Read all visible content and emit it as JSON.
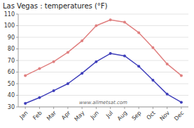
{
  "chart_data": {
    "type": "line",
    "title": "Las Vegas : temperatures (°F)",
    "categories": [
      "Jan",
      "Feb",
      "Mar",
      "Apr",
      "May",
      "Jun",
      "Jul",
      "Aug",
      "Sep",
      "Oct",
      "Nov",
      "Dec"
    ],
    "series": [
      {
        "color": "#e08080",
        "values": [
          57,
          63,
          69,
          77,
          87,
          100,
          105,
          103,
          94,
          81,
          67,
          57
        ]
      },
      {
        "color": "#4040bb",
        "values": [
          33,
          38,
          44,
          50,
          59,
          69,
          76,
          74,
          65,
          53,
          41,
          34
        ]
      }
    ],
    "ylim": [
      30,
      110
    ],
    "yticks": [
      30,
      40,
      50,
      60,
      70,
      80,
      90,
      100,
      110
    ],
    "grid": true,
    "marker": "circle",
    "annotations": [
      "www.allmetsat.com"
    ]
  }
}
